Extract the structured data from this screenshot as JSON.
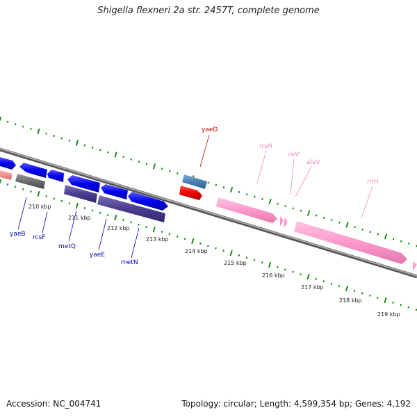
{
  "title": "Shigella flexneri 2a str. 2457T, complete genome",
  "footer": {
    "accession": "Accession: NC_004741",
    "summary": "Topology: circular; Length: 4,599,354 bp; Genes: 4,192"
  },
  "scale_labels": [
    "210 kbp",
    "211 kbp",
    "212 kbp",
    "213 kbp",
    "214 kbp",
    "215 kbp",
    "216 kbp",
    "217 kbp",
    "218 kbp",
    "219 kbp"
  ],
  "gene_labels": {
    "yaeD": "yaeD",
    "rrsH": "rrsH",
    "ileV": "ileV",
    "alaV": "alaV",
    "rrlH": "rrlH",
    "yaeB": "yaeB",
    "rcsF": "rcsF",
    "metQ": "metQ",
    "yaeE": "yaeE",
    "metN": "metN"
  },
  "colors": {
    "tick": "#1a8a1a",
    "backbone": "#808080",
    "cds_forward": "#0000ee",
    "cds_reverse_dark": "#4b3d8f",
    "rrna": "#ff99cc",
    "gray_feature": "#6b6b6b",
    "steelblue_feature": "#4a7fb5",
    "red_feature": "#ee0000",
    "label_red": "#cc0000",
    "label_blue": "#0000aa",
    "label_pink": "#ee88bb"
  }
}
